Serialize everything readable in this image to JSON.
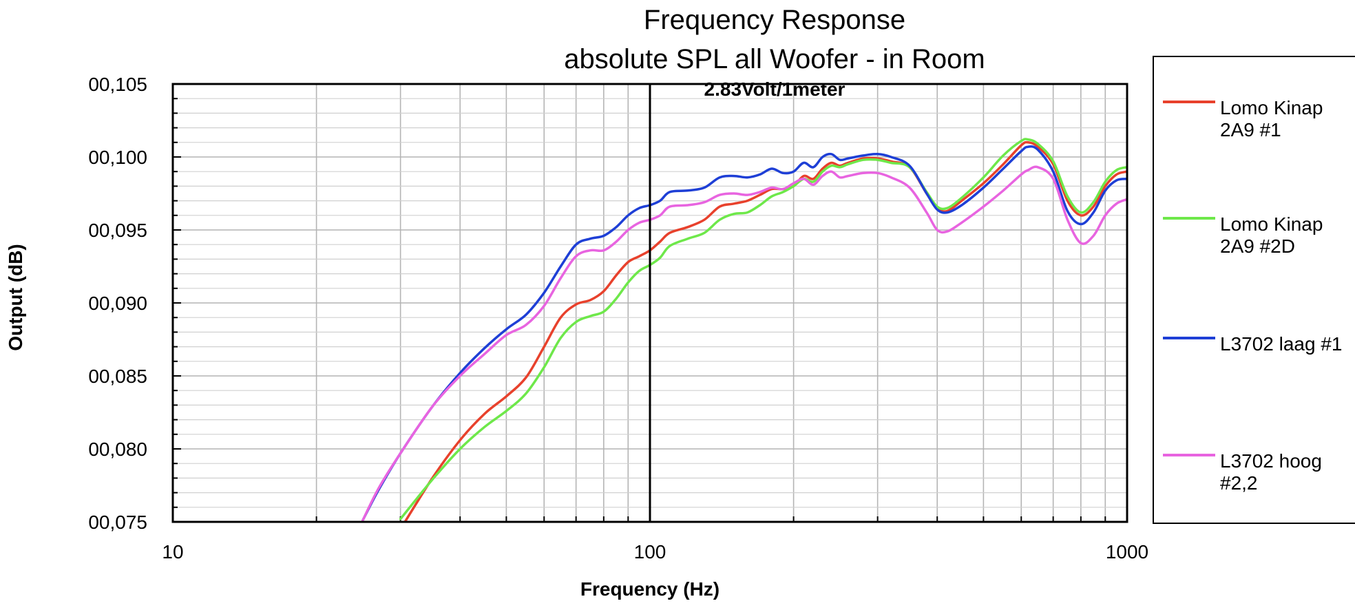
{
  "chart_data": {
    "type": "line",
    "title": [
      "Frequency Response",
      "absolute SPL all Woofer - in Room"
    ],
    "annotation": "2.83Volt/1meter",
    "xlabel": "Frequency (Hz)",
    "ylabel": "Output (dB)",
    "xscale": "log",
    "xlim": [
      10,
      1000
    ],
    "ylim": [
      0.075,
      0.105
    ],
    "x_ticks": [
      {
        "value": 10,
        "label": "10"
      },
      {
        "value": 100,
        "label": "100"
      },
      {
        "value": 1000,
        "label": "1000"
      }
    ],
    "y_ticks": [
      {
        "value": 0.075,
        "label": "00,075"
      },
      {
        "value": 0.08,
        "label": "00,080"
      },
      {
        "value": 0.085,
        "label": "00,085"
      },
      {
        "value": 0.09,
        "label": "00,090"
      },
      {
        "value": 0.095,
        "label": "00,095"
      },
      {
        "value": 0.1,
        "label": "00,100"
      },
      {
        "value": 0.105,
        "label": "00,105"
      }
    ],
    "reference_line_x": 100,
    "grid": true,
    "legend_position": "right",
    "x": [
      25,
      27,
      30,
      35,
      40,
      45,
      50,
      55,
      60,
      65,
      70,
      75,
      80,
      85,
      90,
      95,
      100,
      105,
      110,
      120,
      130,
      140,
      150,
      160,
      170,
      180,
      190,
      200,
      210,
      220,
      230,
      240,
      250,
      260,
      280,
      300,
      320,
      350,
      380,
      400,
      420,
      450,
      500,
      550,
      600,
      620,
      650,
      700,
      750,
      800,
      850,
      900,
      950,
      1000
    ],
    "series": [
      {
        "name": "Lomo Kinap 2A9 #1",
        "legend_lines": [
          "Lomo Kinap",
          "2A9 #1"
        ],
        "color": "#e8412c",
        "values": [
          null,
          null,
          0.0745,
          0.078,
          0.0806,
          0.0824,
          0.0836,
          0.0849,
          0.087,
          0.089,
          0.0899,
          0.0902,
          0.0908,
          0.0919,
          0.0928,
          0.0932,
          0.0936,
          0.0942,
          0.0948,
          0.0952,
          0.0957,
          0.0966,
          0.0968,
          0.097,
          0.0974,
          0.0978,
          0.0978,
          0.098,
          0.0987,
          0.0985,
          0.0992,
          0.0996,
          0.0994,
          0.0996,
          0.0999,
          0.0999,
          0.0997,
          0.0993,
          0.0975,
          0.0965,
          0.0963,
          0.097,
          0.0982,
          0.0995,
          0.1008,
          0.101,
          0.1007,
          0.0995,
          0.097,
          0.096,
          0.0966,
          0.098,
          0.0988,
          0.099
        ]
      },
      {
        "name": "Lomo Kinap 2A9 #2D",
        "legend_lines": [
          "Lomo Kinap",
          "2A9 #2D"
        ],
        "color": "#6ee84a",
        "values": [
          null,
          null,
          0.0752,
          0.0779,
          0.08,
          0.0815,
          0.0826,
          0.0838,
          0.0856,
          0.0876,
          0.0887,
          0.0891,
          0.0894,
          0.0903,
          0.0914,
          0.0922,
          0.0926,
          0.0931,
          0.0939,
          0.0944,
          0.0948,
          0.0957,
          0.0961,
          0.0962,
          0.0967,
          0.0973,
          0.0976,
          0.098,
          0.0985,
          0.0983,
          0.099,
          0.0994,
          0.0993,
          0.0995,
          0.0998,
          0.0998,
          0.0996,
          0.0993,
          0.0976,
          0.0966,
          0.0965,
          0.0972,
          0.0986,
          0.1001,
          0.1011,
          0.1012,
          0.1009,
          0.0997,
          0.0973,
          0.0962,
          0.0969,
          0.0983,
          0.0991,
          0.0993
        ]
      },
      {
        "name": "L3702 laag #1",
        "legend_lines": [
          "L3702 laag #1"
        ],
        "color": "#1e3fd6",
        "values": [
          0.0751,
          0.0772,
          0.0797,
          0.0829,
          0.0852,
          0.0869,
          0.0882,
          0.0892,
          0.0907,
          0.0925,
          0.094,
          0.0944,
          0.0946,
          0.0952,
          0.096,
          0.0965,
          0.0967,
          0.097,
          0.0976,
          0.0977,
          0.0979,
          0.0986,
          0.0987,
          0.0986,
          0.0988,
          0.0992,
          0.0989,
          0.099,
          0.0996,
          0.0993,
          0.1,
          0.1002,
          0.0998,
          0.0999,
          0.1001,
          0.1002,
          0.1,
          0.0994,
          0.0975,
          0.0964,
          0.0962,
          0.0967,
          0.0979,
          0.0992,
          0.1004,
          0.1007,
          0.1005,
          0.099,
          0.0963,
          0.0954,
          0.0962,
          0.0977,
          0.0984,
          0.0985
        ]
      },
      {
        "name": "L3702 hoog #2,2",
        "legend_lines": [
          "L3702 hoog",
          "#2,2"
        ],
        "color": "#e864e0",
        "values": [
          0.0751,
          0.0773,
          0.0797,
          0.0829,
          0.085,
          0.0865,
          0.0878,
          0.0885,
          0.0898,
          0.0917,
          0.0932,
          0.0936,
          0.0936,
          0.0942,
          0.095,
          0.0955,
          0.0957,
          0.096,
          0.0966,
          0.0967,
          0.0969,
          0.0974,
          0.0975,
          0.0974,
          0.0976,
          0.0979,
          0.0978,
          0.0982,
          0.0985,
          0.0981,
          0.0987,
          0.099,
          0.0986,
          0.0987,
          0.0989,
          0.0989,
          0.0986,
          0.0979,
          0.0962,
          0.095,
          0.0949,
          0.0955,
          0.0966,
          0.0977,
          0.0988,
          0.0991,
          0.0993,
          0.0985,
          0.0957,
          0.0941,
          0.0946,
          0.096,
          0.0968,
          0.0971
        ]
      }
    ]
  }
}
